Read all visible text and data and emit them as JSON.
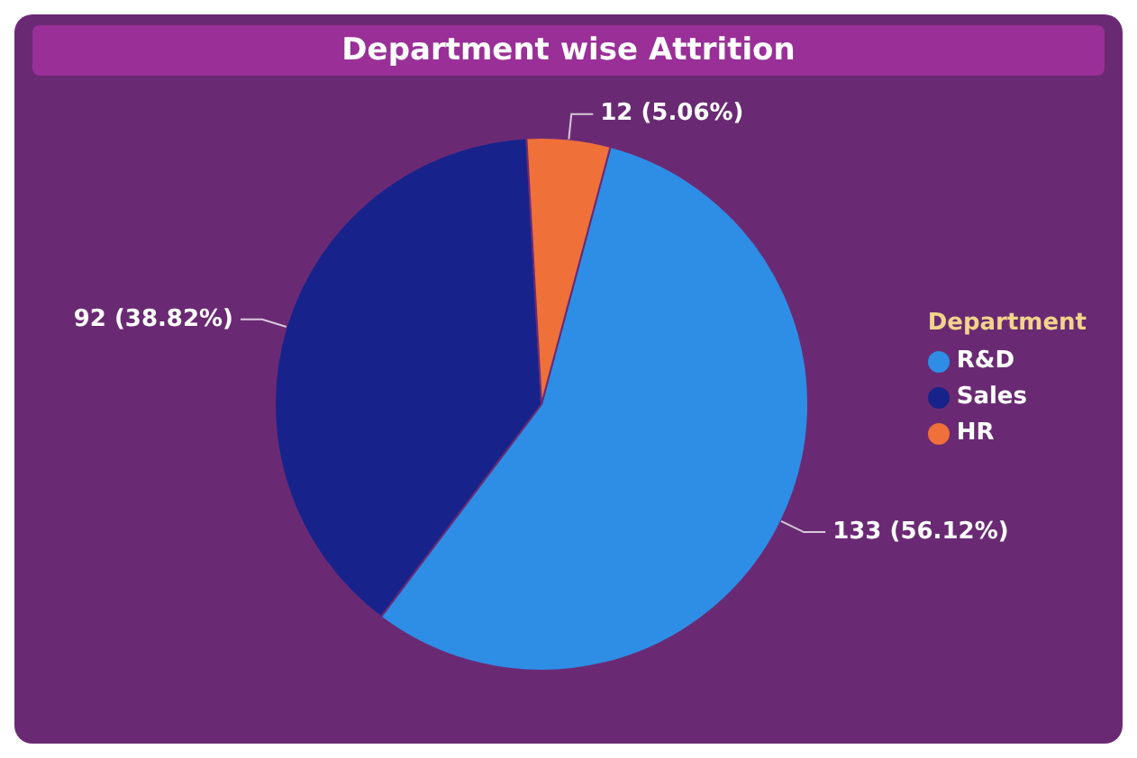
{
  "chart_data": {
    "type": "pie",
    "title": "Department wise Attrition",
    "legend_title": "Department",
    "legend": "right",
    "categories": [
      "R&D",
      "Sales",
      "HR"
    ],
    "values": [
      133,
      92,
      12
    ],
    "colors": [
      "#2e8ee6",
      "#17238a",
      "#f0703a"
    ],
    "value_labels": [
      "133 (56.12%)",
      "92 (38.82%)",
      "12 (5.06%)"
    ]
  }
}
